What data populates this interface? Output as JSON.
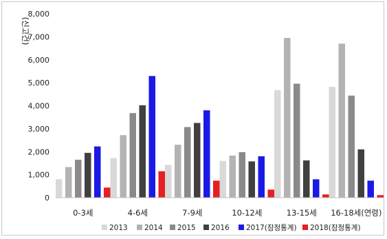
{
  "chart_data": {
    "type": "bar",
    "ylabel": "(신고건)",
    "ylim": [
      0,
      8000
    ],
    "yticks": [
      "0",
      "1,000",
      "2,000",
      "3,000",
      "4,000",
      "5,000",
      "6,000",
      "7,000",
      "8,000"
    ],
    "categories": [
      "0-3세",
      "4-6세",
      "7-9세",
      "10-12세",
      "13-15세",
      "16-18세(연령)"
    ],
    "grid": false,
    "legend_position": "bottom",
    "series": [
      {
        "name": "2013",
        "color": "#d9d9d9",
        "values": [
          800,
          1720,
          1420,
          1600,
          4680,
          4820
        ]
      },
      {
        "name": "2014",
        "color": "#b3b3b3",
        "values": [
          1330,
          2720,
          2300,
          1830,
          6950,
          6700
        ]
      },
      {
        "name": "2015",
        "color": "#8a8a8a",
        "values": [
          1650,
          3680,
          3070,
          1980,
          4960,
          4440
        ]
      },
      {
        "name": "2016",
        "color": "#404040",
        "values": [
          1950,
          4020,
          3250,
          1580,
          1620,
          2100
        ]
      },
      {
        "name": "2017(잠정통계)",
        "color": "#1a1ae6",
        "values": [
          2230,
          5290,
          3800,
          1800,
          800,
          740
        ]
      },
      {
        "name": "2018(잠정통계)",
        "color": "#e62020",
        "values": [
          440,
          1150,
          740,
          350,
          140,
          110
        ]
      }
    ]
  }
}
